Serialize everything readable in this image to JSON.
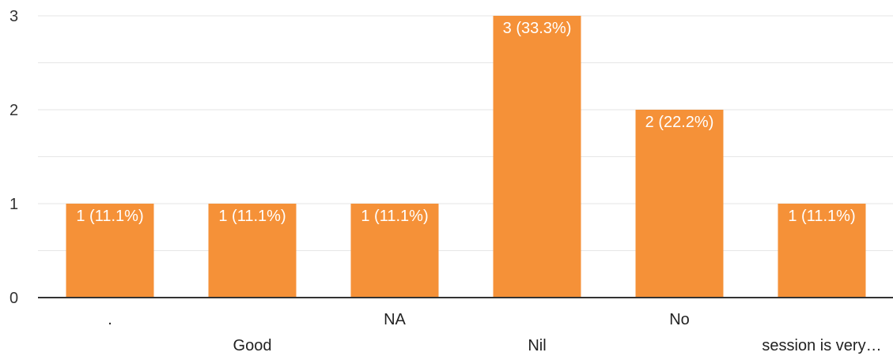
{
  "chart_data": {
    "type": "bar",
    "categories": [
      ".",
      "Good",
      "NA",
      "Nil",
      "No",
      "session is very…"
    ],
    "values": [
      1,
      1,
      1,
      3,
      2,
      1
    ],
    "data_labels": [
      "1 (11.1%)",
      "1 (11.1%)",
      "1 (11.1%)",
      "3 (33.3%)",
      "2 (22.2%)",
      "1 (11.1%)"
    ],
    "yticks": [
      "0",
      "1",
      "2",
      "3"
    ],
    "ylim": [
      0,
      3
    ],
    "minor_grid_step": 0.5,
    "grid": true,
    "title": "",
    "xlabel": "",
    "ylabel": "",
    "colors": {
      "bar": "#f59138",
      "grid": "#e6e6e6",
      "axis": "#333333"
    }
  }
}
